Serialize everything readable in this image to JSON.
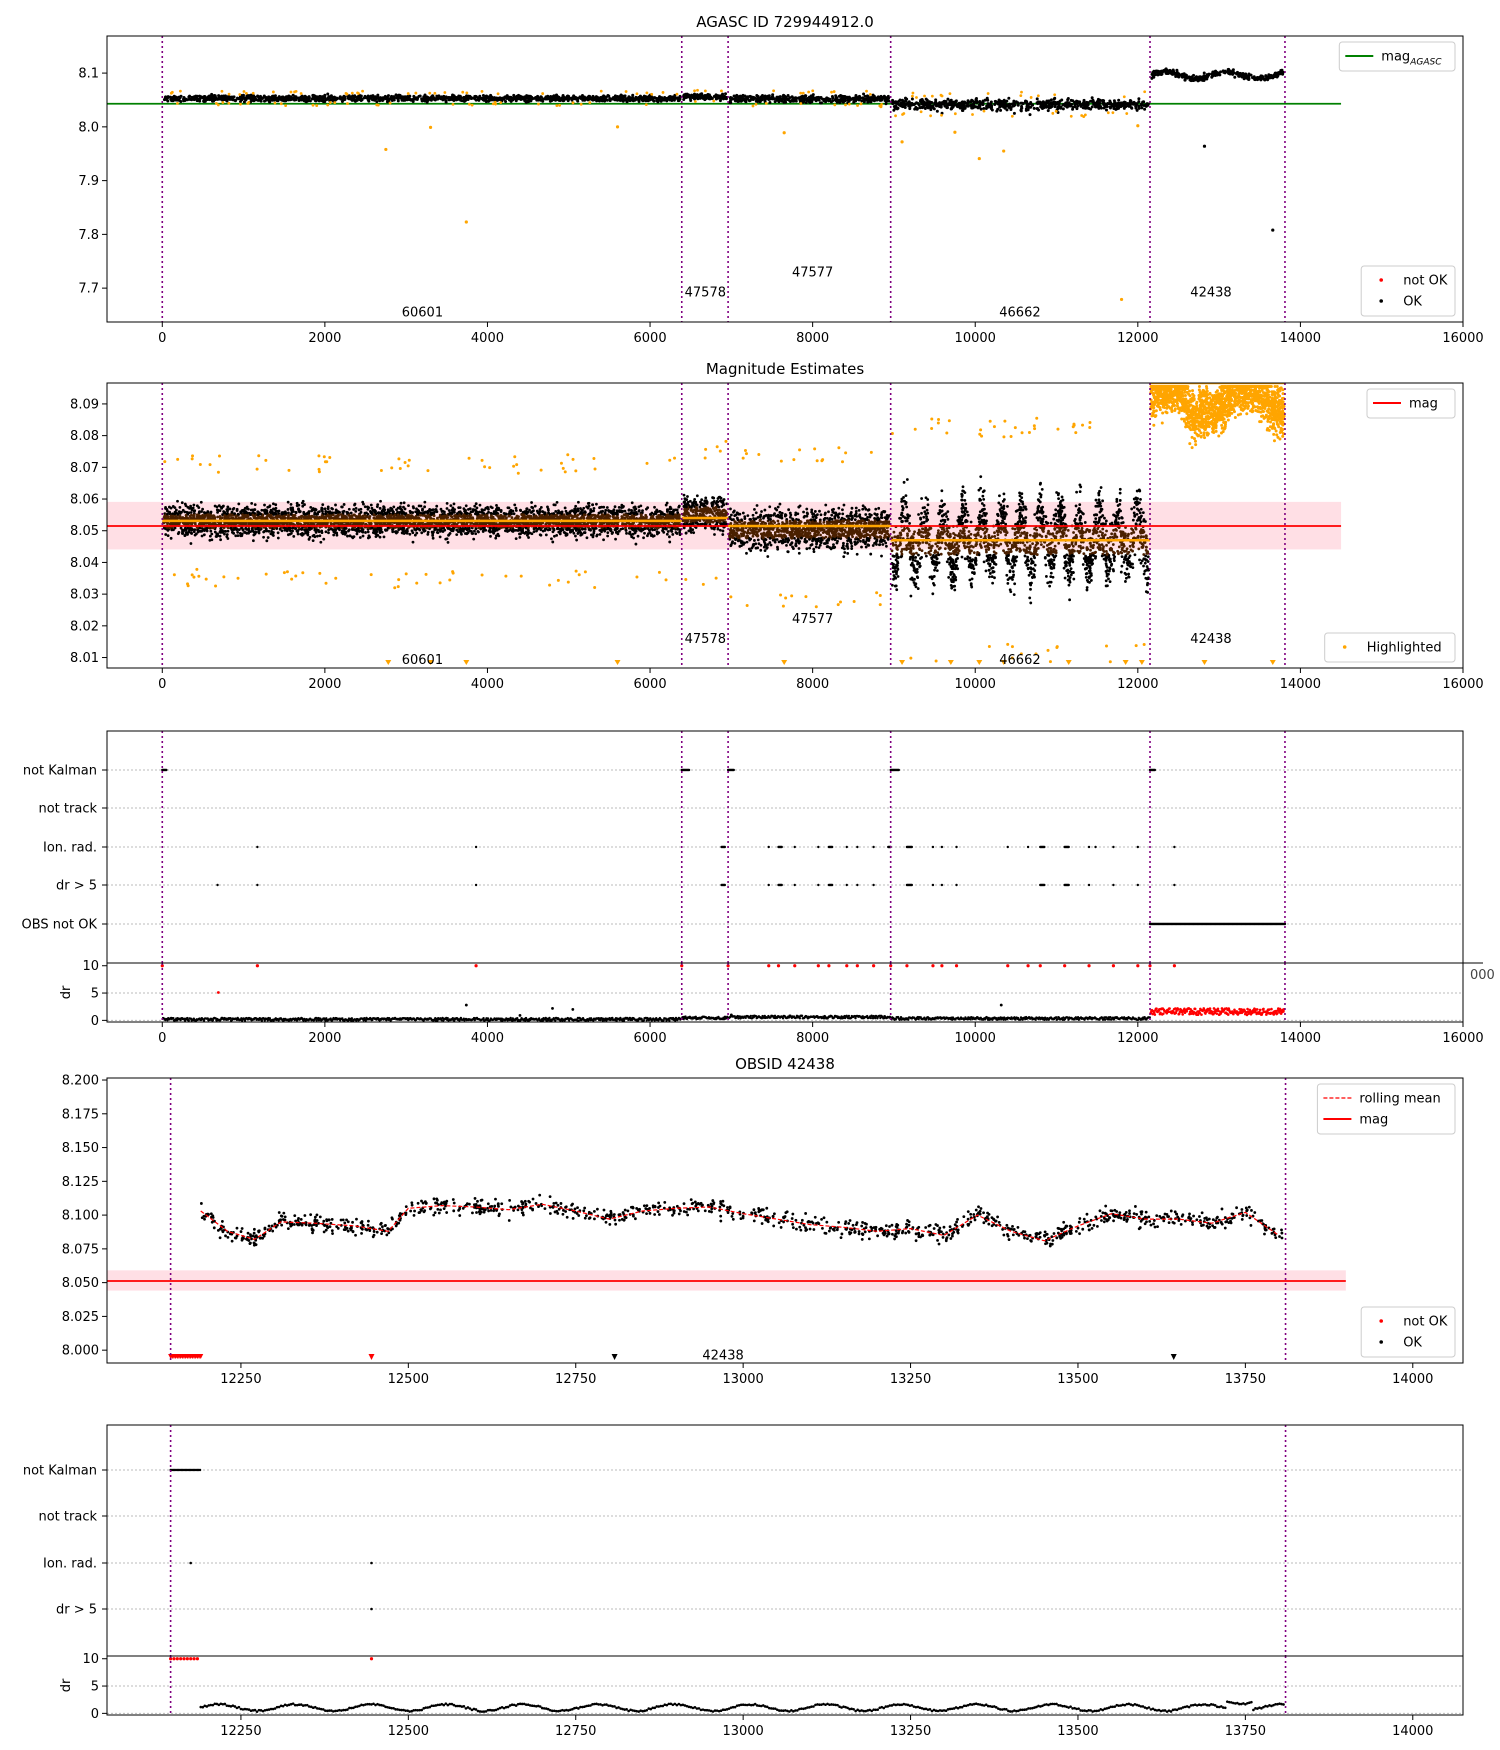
{
  "figure": {
    "title": "AGASC ID 729944912.0"
  },
  "colors": {
    "ok": "#000000",
    "not_ok": "#ff0000",
    "highlight": "#ffa500",
    "agasc_line": "#008000",
    "mag_line": "#ff0000",
    "mag_band": "#ffc0cb",
    "obs_boundary": "#800080",
    "obs_mean": "#ffa500"
  },
  "chart_data": [
    {
      "id": "agasc_overview",
      "type": "scatter",
      "title": "AGASC ID 729944912.0",
      "xlabel": "",
      "ylabel": "",
      "xlim": [
        -680,
        16000
      ],
      "ylim": [
        7.637,
        8.169
      ],
      "xticks": [
        0,
        2000,
        4000,
        6000,
        8000,
        10000,
        12000,
        14000,
        16000
      ],
      "yticks": [
        7.7,
        7.8,
        7.9,
        8.0,
        8.1
      ],
      "obs_boundaries": [
        0,
        6390,
        6960,
        8960,
        12150,
        13810
      ],
      "obs_labels": [
        {
          "text": "60601",
          "x": 3200,
          "y": 7.655
        },
        {
          "text": "47578",
          "x": 6680,
          "y": 7.692
        },
        {
          "text": "47577",
          "x": 8000,
          "y": 7.729
        },
        {
          "text": "46662",
          "x": 10550,
          "y": 7.655
        },
        {
          "text": "42438",
          "x": 12900,
          "y": 7.692
        }
      ],
      "agasc_mag": 8.043,
      "observations": [
        {
          "obsid": "60601",
          "x": [
            0,
            6390
          ],
          "mean": 8.053,
          "spread": 0.008
        },
        {
          "obsid": "47578",
          "x": [
            6390,
            6960
          ],
          "mean": 8.056,
          "spread": 0.008
        },
        {
          "obsid": "47577",
          "x": [
            6960,
            8960
          ],
          "mean": 8.052,
          "spread": 0.009
        },
        {
          "obsid": "46662",
          "x": [
            8960,
            12150
          ],
          "mean": 8.042,
          "spread": 0.014
        },
        {
          "obsid": "42438",
          "x": [
            12150,
            13810
          ],
          "mean": 8.096,
          "spread": 0.01
        }
      ],
      "outliers_highlighted": [
        [
          2750,
          7.958
        ],
        [
          3740,
          7.823
        ],
        [
          3300,
          7.999
        ],
        [
          5600,
          8.0
        ],
        [
          7650,
          7.989
        ],
        [
          9100,
          7.972
        ],
        [
          9750,
          7.99
        ],
        [
          10050,
          7.941
        ],
        [
          10350,
          7.955
        ],
        [
          11800,
          7.679
        ],
        [
          12000,
          8.002
        ]
      ],
      "outliers_ok": [
        [
          12820,
          7.964
        ],
        [
          13660,
          7.808
        ]
      ],
      "legends": [
        {
          "position": "top-right",
          "entries": [
            {
              "label": "mag_AGASC",
              "marker": "line",
              "color": "#008000"
            }
          ]
        },
        {
          "position": "bottom-right",
          "entries": [
            {
              "label": "not OK",
              "marker": "dot",
              "color": "#ff0000"
            },
            {
              "label": "OK",
              "marker": "dot",
              "color": "#000000"
            }
          ]
        }
      ]
    },
    {
      "id": "magnitude_estimates",
      "type": "scatter",
      "title": "Magnitude Estimates",
      "xlabel": "",
      "ylabel": "",
      "xlim": [
        -680,
        16000
      ],
      "ylim": [
        8.0067,
        8.0966
      ],
      "xticks": [
        0,
        2000,
        4000,
        6000,
        8000,
        10000,
        12000,
        14000,
        16000
      ],
      "yticks": [
        8.01,
        8.02,
        8.03,
        8.04,
        8.05,
        8.06,
        8.07,
        8.08,
        8.09
      ],
      "obs_boundaries": [
        0,
        6390,
        6960,
        8960,
        12150,
        13810
      ],
      "obs_labels": [
        {
          "text": "60601",
          "x": 3200,
          "y": 8.0093
        },
        {
          "text": "47578",
          "x": 6680,
          "y": 8.0158
        },
        {
          "text": "47577",
          "x": 8000,
          "y": 8.0222
        },
        {
          "text": "46662",
          "x": 10550,
          "y": 8.0093
        },
        {
          "text": "42438",
          "x": 12900,
          "y": 8.0158
        }
      ],
      "mag": 8.0515,
      "mag_band": [
        8.0441,
        8.0591
      ],
      "obs_means": [
        {
          "x": [
            0,
            6390
          ],
          "mean": 8.0531
        },
        {
          "x": [
            6390,
            6960
          ],
          "mean": 8.054
        },
        {
          "x": [
            6960,
            8960
          ],
          "mean": 8.0515
        },
        {
          "x": [
            8960,
            12150
          ],
          "mean": 8.047
        },
        {
          "x": [
            12150,
            13810
          ],
          "mean": 8.0966
        }
      ],
      "clip_markers_x": [
        2780,
        3300,
        3740,
        5600,
        7650,
        9100,
        9700,
        10050,
        10350,
        11150,
        11850,
        12050,
        12820,
        13660
      ],
      "legends": [
        {
          "position": "top-right",
          "entries": [
            {
              "label": "mag",
              "marker": "line",
              "color": "#ff0000"
            }
          ]
        },
        {
          "position": "bottom-right",
          "entries": [
            {
              "label": "Highlighted",
              "marker": "dot",
              "color": "#ffa500"
            }
          ]
        }
      ]
    },
    {
      "id": "flags_overview",
      "type": "scatter",
      "xlim": [
        -680,
        16000
      ],
      "xticks": [
        0,
        2000,
        4000,
        6000,
        8000,
        10000,
        12000,
        14000,
        16000
      ],
      "categories": [
        "not Kalman",
        "not track",
        "Ion. rad.",
        "dr > 5",
        "OBS not OK"
      ],
      "obs_boundaries": [
        0,
        6390,
        6960,
        8960,
        12150,
        13810
      ],
      "flag_points": {
        "not Kalman": [
          [
            0,
            50
          ],
          [
            6390,
            90
          ],
          [
            6960,
            70
          ],
          [
            8960,
            100
          ],
          [
            12150,
            60
          ]
        ],
        "Ion. rad.": [
          [
            1170,
            0
          ],
          [
            3860,
            0
          ],
          [
            6880,
            40
          ],
          [
            7460,
            0
          ],
          [
            7580,
            40
          ],
          [
            7780,
            0
          ],
          [
            8070,
            0
          ],
          [
            8200,
            40
          ],
          [
            8420,
            0
          ],
          [
            8550,
            0
          ],
          [
            8750,
            0
          ],
          [
            8930,
            30
          ],
          [
            9160,
            60
          ],
          [
            9480,
            0
          ],
          [
            9590,
            0
          ],
          [
            9770,
            0
          ],
          [
            10400,
            0
          ],
          [
            10650,
            0
          ],
          [
            10800,
            50
          ],
          [
            11100,
            50
          ],
          [
            11400,
            0
          ],
          [
            11480,
            0
          ],
          [
            11700,
            0
          ],
          [
            12000,
            0
          ],
          [
            12450,
            0
          ]
        ],
        "dr > 5": [
          [
            680,
            0
          ],
          [
            1170,
            0
          ],
          [
            3860,
            0
          ],
          [
            6880,
            40
          ],
          [
            7460,
            0
          ],
          [
            7580,
            40
          ],
          [
            7780,
            0
          ],
          [
            8070,
            0
          ],
          [
            8200,
            40
          ],
          [
            8420,
            0
          ],
          [
            8550,
            0
          ],
          [
            8750,
            0
          ],
          [
            9160,
            60
          ],
          [
            9480,
            0
          ],
          [
            9590,
            0
          ],
          [
            9770,
            0
          ],
          [
            10800,
            50
          ],
          [
            11100,
            50
          ],
          [
            11400,
            0
          ],
          [
            11700,
            0
          ],
          [
            12000,
            0
          ],
          [
            12450,
            0
          ]
        ],
        "OBS not OK": [
          [
            12150,
            1660
          ]
        ]
      },
      "dr_panel": {
        "ylabel": "dr",
        "ylim": [
          -0.3,
          10.5
        ],
        "yticks": [
          0,
          5,
          10
        ],
        "spikes": [
          [
            690,
            5.1
          ],
          [
            3740,
            2.8
          ],
          [
            4400,
            0.9
          ],
          [
            4800,
            2.2
          ],
          [
            5050,
            2.0
          ],
          [
            7000,
            1.0
          ],
          [
            10320,
            2.8
          ]
        ],
        "red_dots_x": [
          0,
          1170,
          3860,
          6390,
          6960,
          7460,
          7580,
          7780,
          8070,
          8200,
          8420,
          8550,
          8750,
          8960,
          9160,
          9480,
          9590,
          9770,
          10400,
          10650,
          10800,
          11100,
          11400,
          11700,
          12000,
          12150,
          12450
        ],
        "hidden_tick_fragment": "000"
      }
    },
    {
      "id": "obsid_detail",
      "type": "scatter",
      "title": "OBSID 42438",
      "xlabel": "",
      "ylabel": "",
      "xlim": [
        12050,
        14075
      ],
      "ylim": [
        7.9905,
        8.2015
      ],
      "xticks": [
        12250,
        12500,
        12750,
        13000,
        13250,
        13500,
        13750,
        14000
      ],
      "yticks": [
        8.0,
        8.025,
        8.05,
        8.075,
        8.1,
        8.125,
        8.15,
        8.175,
        8.2
      ],
      "obs_boundaries": [
        12145,
        13810
      ],
      "obs_label": {
        "text": "42438",
        "x": 12970,
        "y": 7.996
      },
      "mag": 8.0512,
      "mag_band": [
        8.0441,
        8.0591
      ],
      "rolling_mean": [
        [
          12190,
          8.103
        ],
        [
          12230,
          8.088
        ],
        [
          12270,
          8.082
        ],
        [
          12310,
          8.095
        ],
        [
          12360,
          8.094
        ],
        [
          12420,
          8.092
        ],
        [
          12470,
          8.088
        ],
        [
          12500,
          8.105
        ],
        [
          12550,
          8.107
        ],
        [
          12600,
          8.106
        ],
        [
          12650,
          8.104
        ],
        [
          12700,
          8.108
        ],
        [
          12750,
          8.103
        ],
        [
          12800,
          8.097
        ],
        [
          12850,
          8.103
        ],
        [
          12900,
          8.105
        ],
        [
          12950,
          8.106
        ],
        [
          13000,
          8.101
        ],
        [
          13050,
          8.097
        ],
        [
          13100,
          8.093
        ],
        [
          13150,
          8.091
        ],
        [
          13200,
          8.088
        ],
        [
          13250,
          8.09
        ],
        [
          13300,
          8.085
        ],
        [
          13350,
          8.1
        ],
        [
          13400,
          8.088
        ],
        [
          13450,
          8.081
        ],
        [
          13500,
          8.092
        ],
        [
          13550,
          8.101
        ],
        [
          13600,
          8.097
        ],
        [
          13650,
          8.097
        ],
        [
          13700,
          8.094
        ],
        [
          13750,
          8.102
        ],
        [
          13800,
          8.085
        ]
      ],
      "red_dots_x_range": [
        12145,
        12190
      ],
      "red_triangle_x": [
        12445
      ],
      "black_triangle_x": [
        12808,
        13643
      ],
      "legends": [
        {
          "position": "top-right",
          "entries": [
            {
              "label": "rolling mean",
              "marker": "dash",
              "color": "#ff0000"
            },
            {
              "label": "mag",
              "marker": "line",
              "color": "#ff0000"
            }
          ]
        },
        {
          "position": "bottom-right",
          "entries": [
            {
              "label": "not OK",
              "marker": "dot",
              "color": "#ff0000"
            },
            {
              "label": "OK",
              "marker": "dot",
              "color": "#000000"
            }
          ]
        }
      ]
    },
    {
      "id": "flags_detail",
      "type": "scatter",
      "xlim": [
        12050,
        14075
      ],
      "xticks": [
        12250,
        12500,
        12750,
        13000,
        13250,
        13500,
        13750,
        14000
      ],
      "categories": [
        "not Kalman",
        "not track",
        "Ion. rad.",
        "dr > 5"
      ],
      "obs_boundaries": [
        12145,
        13810
      ],
      "flag_points": {
        "not Kalman": [
          [
            12145,
            45
          ]
        ],
        "Ion. rad.": [
          [
            12175,
            0
          ],
          [
            12445,
            0
          ]
        ],
        "dr > 5": [
          [
            12445,
            0
          ]
        ]
      },
      "dr_panel": {
        "ylabel": "dr",
        "ylim": [
          -0.3,
          10.5
        ],
        "yticks": [
          0,
          5,
          10
        ],
        "red_dots_x": [
          12145,
          12150,
          12155,
          12160,
          12165,
          12170,
          12175,
          12180,
          12185,
          12445
        ]
      }
    }
  ]
}
